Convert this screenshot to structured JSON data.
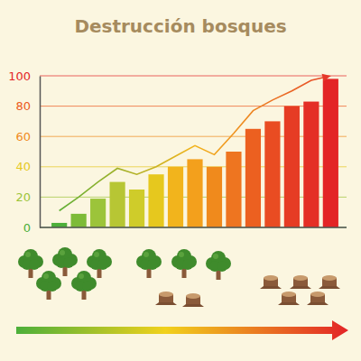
{
  "chart_data": {
    "type": "bar",
    "title": "Destrucción bosques",
    "categories": [
      null,
      null,
      null,
      null,
      null,
      null,
      null,
      null,
      null,
      null,
      null,
      null,
      null,
      null,
      null
    ],
    "series": [
      {
        "type": "bar",
        "colors": [
          "#4caf3a",
          "#7dbb38",
          "#9cc43a",
          "#b7c634",
          "#cfcc2a",
          "#e6c81e",
          "#f2b41c",
          "#f3a01c",
          "#f08a1c",
          "#ee7520",
          "#ec6020",
          "#e94c22",
          "#e63c24",
          "#e42f26",
          "#e32526"
        ],
        "values": [
          3,
          9,
          19,
          30,
          25,
          35,
          40,
          45,
          40,
          50,
          65,
          70,
          80,
          83,
          98
        ]
      },
      {
        "type": "line",
        "color": "#e5382a",
        "line_style": "solid",
        "values": [
          11,
          20,
          30,
          39,
          35,
          40,
          47,
          54,
          48,
          62,
          77,
          84,
          90,
          97,
          100
        ]
      }
    ],
    "ylim": [
      0,
      100
    ],
    "yticks": [
      0,
      20,
      40,
      60,
      80,
      100
    ],
    "grid": true,
    "tick_labels": "y"
  }
}
